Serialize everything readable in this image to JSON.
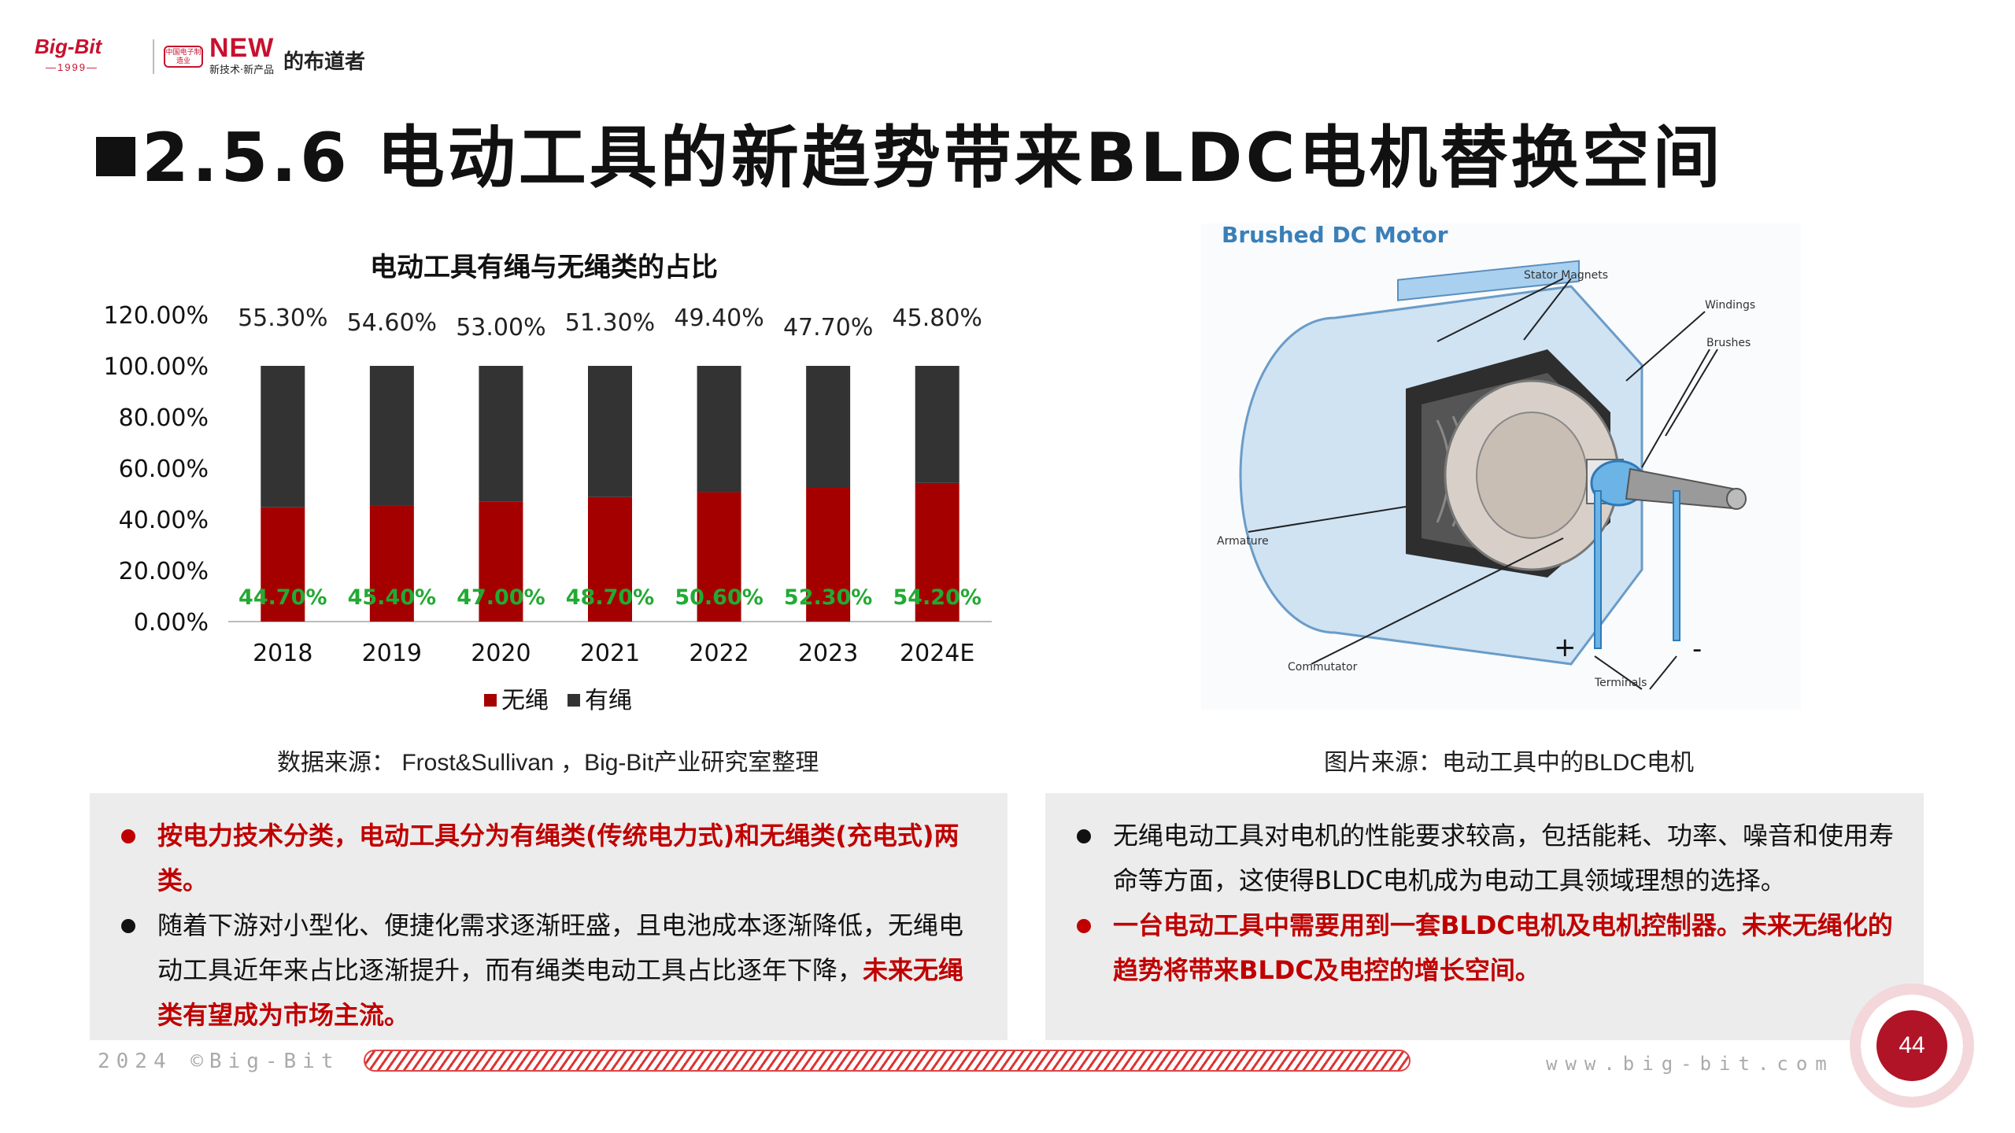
{
  "logo": {
    "brand_mark": "Big-Bit",
    "year": "—1999—",
    "badge": "中国电子制造业",
    "new_text": "NEW",
    "new_sub": "新技术·新产品",
    "brand_name": "的布道者"
  },
  "title": "2.5.6 电动工具的新趋势带来BLDC电机替换空间",
  "chart": {
    "title": "电动工具有绳与无绳类的占比",
    "legend": [
      "无绳",
      "有绳"
    ]
  },
  "chart_data": {
    "type": "bar",
    "stacked": true,
    "title": "电动工具有绳与无绳类的占比",
    "categories": [
      "2018",
      "2019",
      "2020",
      "2021",
      "2022",
      "2023",
      "2024E"
    ],
    "series": [
      {
        "name": "无绳",
        "color": "#a50000",
        "label_color": "#22aa33",
        "values": [
          44.7,
          45.4,
          47.0,
          48.7,
          50.6,
          52.3,
          54.2
        ],
        "labels": [
          "44.70%",
          "45.40%",
          "47.00%",
          "48.70%",
          "50.60%",
          "52.30%",
          "54.20%"
        ]
      },
      {
        "name": "有绳",
        "color": "#333333",
        "label_color": "#222222",
        "values": [
          55.3,
          54.6,
          53.0,
          51.3,
          49.4,
          47.7,
          45.8
        ],
        "labels": [
          "55.30%",
          "54.60%",
          "53.00%",
          "51.30%",
          "49.40%",
          "47.70%",
          "45.80%"
        ]
      }
    ],
    "ylim": [
      0,
      120
    ],
    "yticks": [
      "0.00%",
      "20.00%",
      "40.00%",
      "60.00%",
      "80.00%",
      "100.00%",
      "120.00%"
    ],
    "grid": false,
    "legend_position": "bottom"
  },
  "captions": {
    "left": "数据来源： Frost&Sullivan ，Big-Bit产业研究室整理",
    "right": "图片来源：电动工具中的BLDC电机"
  },
  "motor_figure": {
    "heading": "Brushed DC Motor",
    "labels": {
      "stator": "Stator Magnets",
      "windings": "Windings",
      "brushes": "Brushes",
      "armature": "Armature",
      "commutator": "Commutator",
      "terminals": "Terminals",
      "plus": "+",
      "minus": "-"
    }
  },
  "left_panel": {
    "b1": "按电力技术分类，电动工具分为有绳类(传统电力式)和无绳类(充电式)两类。",
    "b2_normal": "随着下游对小型化、便捷化需求逐渐旺盛，且电池成本逐渐降低，无绳电动工具近年来占比逐渐提升，而有绳类电动工具占比逐年下降，",
    "b2_highlight": "未来无绳类有望成为市场主流。"
  },
  "right_panel": {
    "b1": "无绳电动工具对电机的性能要求较高，包括能耗、功率、噪音和使用寿命等方面，这使得BLDC电机成为电动工具领域理想的选择。",
    "b2": "一台电动工具中需要用到一套BLDC电机及电机控制器。未来无绳化的趋势将带来BLDC及电控的增长空间。"
  },
  "footer": {
    "left": "2024 ©Big-Bit",
    "right": "www.big-bit.com"
  },
  "page_number": "44"
}
